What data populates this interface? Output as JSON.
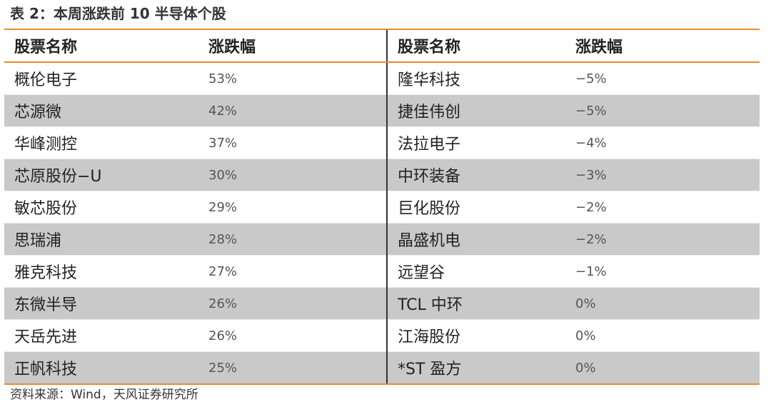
{
  "title": "表 2：本周涨跌前 10 半导体个股",
  "headers": {
    "left_name": "股票名称",
    "left_change": "涨跌幅",
    "right_name": "股票名称",
    "right_change": "涨跌幅"
  },
  "rows": [
    {
      "left_name": "概伦电子",
      "left_change": "53%",
      "right_name": "隆华科技",
      "right_change": "−5%"
    },
    {
      "left_name": "芯源微",
      "left_change": "42%",
      "right_name": "捷佳伟创",
      "right_change": "−5%"
    },
    {
      "left_name": "华峰测控",
      "left_change": "37%",
      "right_name": "法拉电子",
      "right_change": "−4%"
    },
    {
      "left_name": "芯原股份−U",
      "left_change": "30%",
      "right_name": "中环装备",
      "right_change": "−3%"
    },
    {
      "left_name": "敏芯股份",
      "left_change": "29%",
      "right_name": "巨化股份",
      "right_change": "−2%"
    },
    {
      "left_name": "思瑞浦",
      "left_change": "28%",
      "right_name": "晶盛机电",
      "right_change": "−2%"
    },
    {
      "left_name": "雅克科技",
      "left_change": "27%",
      "right_name": "远望谷",
      "right_change": "−1%"
    },
    {
      "left_name": "东微半导",
      "left_change": "26%",
      "right_name": "TCL 中环",
      "right_change": "0%"
    },
    {
      "left_name": "天岳先进",
      "left_change": "26%",
      "right_name": "江海股份",
      "right_change": "0%"
    },
    {
      "left_name": "正帆科技",
      "left_change": "25%",
      "right_name": "*ST 盈方",
      "right_change": "0%"
    }
  ],
  "source": "资料来源：Wind，天风证券研究所",
  "colors": {
    "accent_rule": "#e98a2c",
    "shaded_row": "#c9c9c9",
    "divider": "#333333"
  }
}
